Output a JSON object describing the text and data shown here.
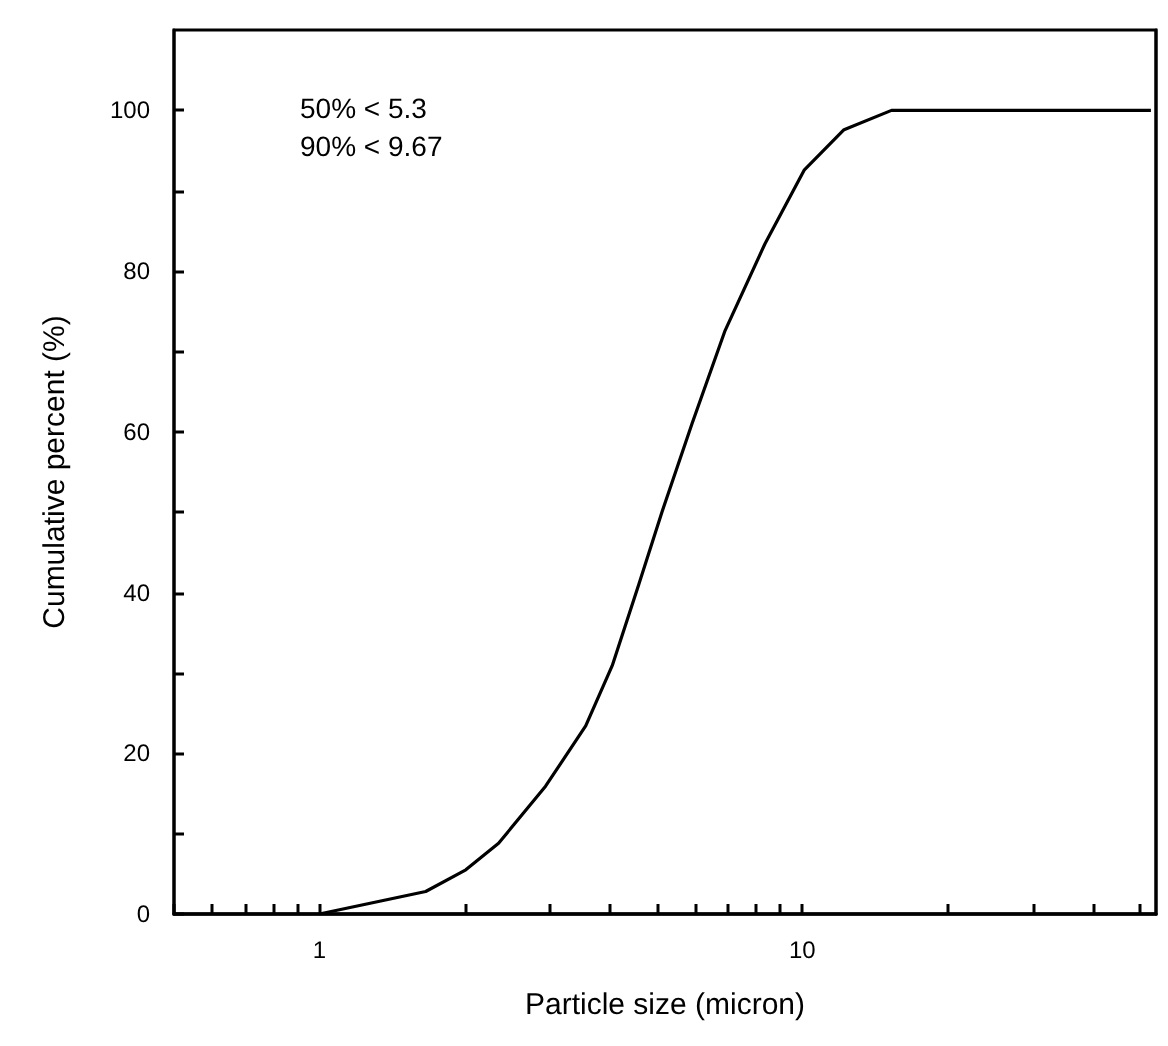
{
  "chart_data": {
    "type": "line",
    "xlabel": "Particle size (micron)",
    "ylabel": "Cumulative percent (%)",
    "log": "x",
    "xlim": [
      0.5,
      54
    ],
    "ylim": [
      0,
      110
    ],
    "xticks": [
      {
        "value": 0.5,
        "label": null
      },
      {
        "value": 0.6,
        "label": null
      },
      {
        "value": 0.7,
        "label": null
      },
      {
        "value": 0.8,
        "label": null
      },
      {
        "value": 0.9,
        "label": null
      },
      1,
      {
        "value": 2,
        "label": null
      },
      {
        "value": 3,
        "label": null
      },
      {
        "value": 4,
        "label": null
      },
      {
        "value": 5,
        "label": null
      },
      {
        "value": 6,
        "label": null
      },
      {
        "value": 7,
        "label": null
      },
      {
        "value": 8,
        "label": null
      },
      {
        "value": 9,
        "label": null
      },
      10,
      {
        "value": 20,
        "label": null
      },
      {
        "value": 30,
        "label": null
      },
      {
        "value": 40,
        "label": null
      },
      {
        "value": 50,
        "label": null
      }
    ],
    "yticks": [
      0,
      {
        "value": 10,
        "label": null
      },
      20,
      {
        "value": 30,
        "label": null
      },
      40,
      {
        "value": 50,
        "label": null
      },
      60,
      {
        "value": 70,
        "label": null
      },
      80,
      {
        "value": 90,
        "label": null
      },
      100
    ],
    "x": [
      1,
      1.66,
      2.01,
      2.35,
      2.94,
      3.56,
      4.04,
      4.58,
      5.12,
      5.91,
      6.92,
      8.37,
      10.1,
      12.2,
      15.3,
      52.7
    ],
    "series": [
      {
        "color": "#000000",
        "values": [
          0,
          2.8,
          5.5,
          8.8,
          15.9,
          23.4,
          30.9,
          40.9,
          50,
          61,
          72.6,
          83.4,
          92.6,
          97.6,
          100,
          100
        ]
      }
    ],
    "marker": "none",
    "line_style": "solid",
    "grid": false,
    "annotations": [
      "50% < 5.3",
      "90% < 9.67"
    ]
  }
}
